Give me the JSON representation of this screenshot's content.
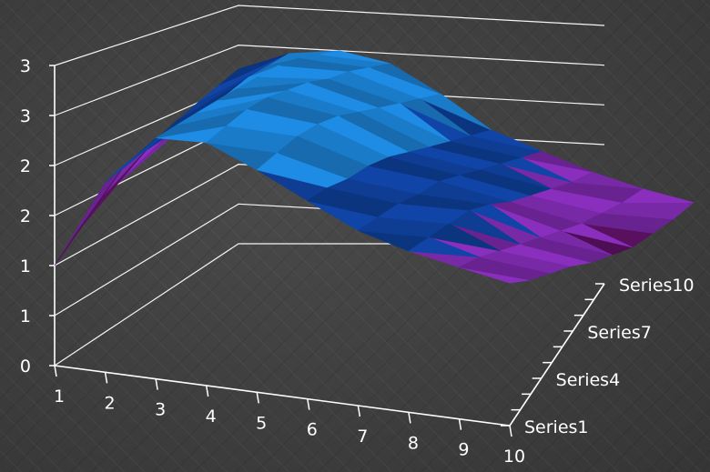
{
  "chart_data": {
    "type": "surface",
    "title": "",
    "x": {
      "ticks": [
        "1",
        "2",
        "3",
        "4",
        "5",
        "6",
        "7",
        "8",
        "9",
        "10"
      ]
    },
    "z_axis_labels": [
      "Series1",
      "Series4",
      "Series7",
      "Series10"
    ],
    "series_count": 10,
    "y": {
      "ticks": [
        "0",
        "1",
        "1",
        "2",
        "2",
        "3",
        "3"
      ],
      "range": [
        0,
        3
      ]
    },
    "grid": true,
    "colors": {
      "low": "#5a1060",
      "mid": "#8b2fc0",
      "high_dark": "#0a3fa0",
      "high_light": "#1e8ee8",
      "axis": "#ffffff"
    },
    "values": [
      [
        1.0,
        1.95,
        2.55,
        2.65,
        2.5,
        2.3,
        2.1,
        2.0,
        1.95,
        1.9
      ],
      [
        1.2,
        2.05,
        2.6,
        2.75,
        2.6,
        2.35,
        2.15,
        2.05,
        1.95,
        1.8
      ],
      [
        1.4,
        2.1,
        2.65,
        2.85,
        2.7,
        2.35,
        2.2,
        2.1,
        1.9,
        1.75
      ],
      [
        1.5,
        2.15,
        2.7,
        2.9,
        2.75,
        2.4,
        2.2,
        2.15,
        1.85,
        1.7
      ],
      [
        1.65,
        2.2,
        2.75,
        2.9,
        2.75,
        2.4,
        2.25,
        2.1,
        1.8,
        1.6
      ],
      [
        1.8,
        2.3,
        2.8,
        2.9,
        2.7,
        2.35,
        2.2,
        2.0,
        1.75,
        1.55
      ],
      [
        1.9,
        2.35,
        2.85,
        2.85,
        2.65,
        2.3,
        2.15,
        1.95,
        1.7,
        1.5
      ],
      [
        2.0,
        2.45,
        2.85,
        2.85,
        2.6,
        2.25,
        2.1,
        1.9,
        1.7,
        1.55
      ],
      [
        2.1,
        2.5,
        2.8,
        2.8,
        2.55,
        2.2,
        2.05,
        1.85,
        1.7,
        1.6
      ],
      [
        2.2,
        2.55,
        2.75,
        2.75,
        2.5,
        2.15,
        2.0,
        1.85,
        1.75,
        1.7
      ]
    ]
  }
}
